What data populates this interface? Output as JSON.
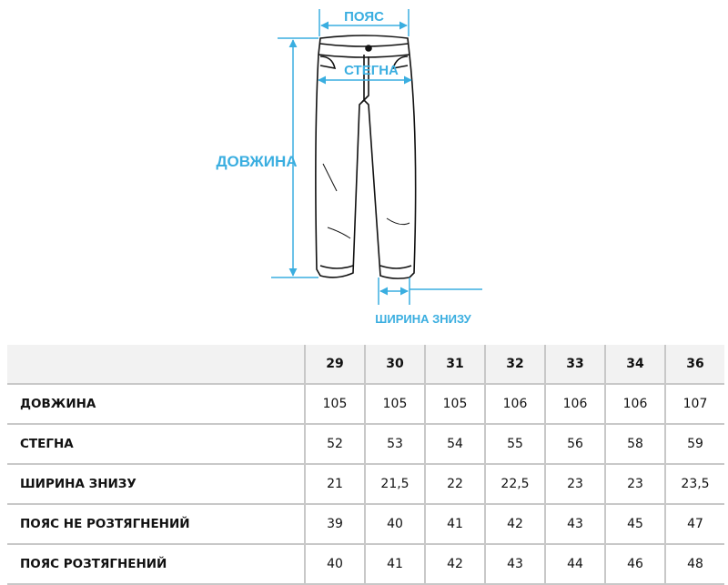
{
  "diagram": {
    "labels": {
      "waist": "ПОЯС",
      "hip": "СТЕГНА",
      "length": "ДОВЖИНА",
      "hem": "ШИРИНА ЗНИЗУ"
    },
    "accent_color": "#3aaee0"
  },
  "table": {
    "sizes": [
      "29",
      "30",
      "31",
      "32",
      "33",
      "34",
      "36"
    ],
    "rows": [
      {
        "label": "ДОВЖИНА",
        "values": [
          "105",
          "105",
          "105",
          "106",
          "106",
          "106",
          "107"
        ]
      },
      {
        "label": "СТЕГНА",
        "values": [
          "52",
          "53",
          "54",
          "55",
          "56",
          "58",
          "59"
        ]
      },
      {
        "label": "ШИРИНА ЗНИЗУ",
        "values": [
          "21",
          "21,5",
          "22",
          "22,5",
          "23",
          "23",
          "23,5"
        ]
      },
      {
        "label": "ПОЯС НЕ РОЗТЯГНЕНИЙ",
        "values": [
          "39",
          "40",
          "41",
          "42",
          "43",
          "45",
          "47"
        ]
      },
      {
        "label": "ПОЯС РОЗТЯГНЕНИЙ",
        "values": [
          "40",
          "41",
          "42",
          "43",
          "44",
          "46",
          "48"
        ]
      }
    ]
  }
}
